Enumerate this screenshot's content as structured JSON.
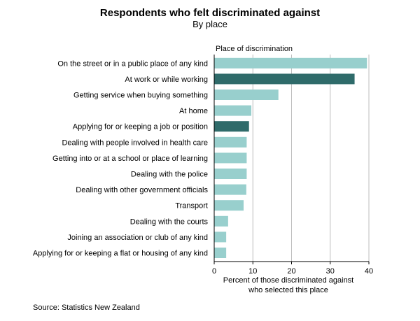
{
  "title": "Respondents who felt discriminated against",
  "subtitle": "By place",
  "source": "Source: Statistics New Zealand",
  "colors": {
    "bar_light": "#98cfcd",
    "bar_dark": "#2f6b6a",
    "grid": "#bdbdbd",
    "axis": "#000000"
  },
  "chart_data": {
    "type": "bar",
    "orientation": "horizontal",
    "category_axis_title": "Place of discrimination",
    "xlabel_lines": [
      "Percent of those discriminated against",
      "who selected this place"
    ],
    "xlim": [
      0,
      40
    ],
    "xticks": [
      0,
      10,
      20,
      30,
      40
    ],
    "grid": true,
    "categories": [
      "On the street or in a public place of any kind",
      "At work or while working",
      "Getting service when buying something",
      "At home",
      "Applying for or keeping a job or position",
      "Dealing with people involved in health care",
      "Getting into or at a school or place of learning",
      "Dealing with the police",
      "Dealing with other government officials",
      "Transport",
      "Dealing with the courts",
      "Joining an association or club of any kind",
      "Applying for or keeping a flat or housing of any kind"
    ],
    "values": [
      39.5,
      36.3,
      16.6,
      9.6,
      9.0,
      8.4,
      8.4,
      8.4,
      8.3,
      7.6,
      3.6,
      3.1,
      3.1
    ],
    "highlighted": [
      "At work or while working",
      "Applying for or keeping a job or position"
    ]
  }
}
